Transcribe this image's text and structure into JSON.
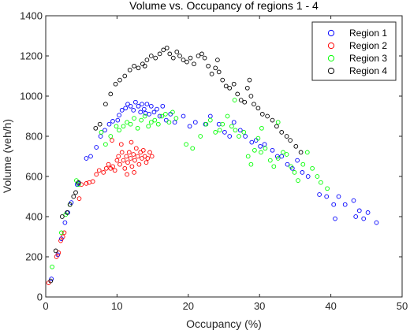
{
  "chart_data": {
    "type": "scatter",
    "title": "Volume vs. Occupancy of regions 1 - 4",
    "xlabel": "Occupancy (%)",
    "ylabel": "Volume (veh/h)",
    "xlim": [
      0,
      50
    ],
    "ylim": [
      0,
      1400
    ],
    "xticks": [
      0,
      10,
      20,
      30,
      40,
      50
    ],
    "yticks": [
      0,
      200,
      400,
      600,
      800,
      1000,
      1200,
      1400
    ],
    "grid": false,
    "legend_position": "top-right",
    "series": [
      {
        "name": "Region 1",
        "color": "#0000ff",
        "points": [
          [
            0.8,
            90
          ],
          [
            1.7,
            210
          ],
          [
            2.2,
            290
          ],
          [
            2.7,
            370
          ],
          [
            3.1,
            420
          ],
          [
            3.6,
            470
          ],
          [
            4.4,
            560
          ],
          [
            4.6,
            565
          ],
          [
            5.7,
            690
          ],
          [
            6.3,
            700
          ],
          [
            7.1,
            745
          ],
          [
            7.7,
            800
          ],
          [
            8.3,
            830
          ],
          [
            8.9,
            860
          ],
          [
            9.4,
            875
          ],
          [
            10.1,
            880
          ],
          [
            10.3,
            905
          ],
          [
            10.7,
            930
          ],
          [
            11.2,
            940
          ],
          [
            11.5,
            960
          ],
          [
            11.9,
            950
          ],
          [
            12.3,
            930
          ],
          [
            12.6,
            970
          ],
          [
            13.0,
            950
          ],
          [
            13.3,
            920
          ],
          [
            13.5,
            960
          ],
          [
            13.8,
            935
          ],
          [
            14.0,
            915
          ],
          [
            14.2,
            960
          ],
          [
            14.5,
            910
          ],
          [
            14.8,
            950
          ],
          [
            15.2,
            920
          ],
          [
            15.6,
            935
          ],
          [
            16.0,
            900
          ],
          [
            16.4,
            950
          ],
          [
            16.9,
            880
          ],
          [
            17.5,
            910
          ],
          [
            18.1,
            870
          ],
          [
            19.3,
            900
          ],
          [
            20.2,
            850
          ],
          [
            21.0,
            870
          ],
          [
            22.4,
            860
          ],
          [
            23.1,
            900
          ],
          [
            24.3,
            860
          ],
          [
            25.1,
            820
          ],
          [
            25.8,
            800
          ],
          [
            26.4,
            870
          ],
          [
            27.3,
            830
          ],
          [
            28.0,
            800
          ],
          [
            28.9,
            770
          ],
          [
            29.5,
            780
          ],
          [
            30.1,
            750
          ],
          [
            30.7,
            760
          ],
          [
            31.8,
            730
          ],
          [
            32.5,
            700
          ],
          [
            33.1,
            700
          ],
          [
            33.9,
            660
          ],
          [
            34.6,
            640
          ],
          [
            35.3,
            680
          ],
          [
            36.0,
            620
          ],
          [
            36.8,
            600
          ],
          [
            38.4,
            510
          ],
          [
            39.4,
            500
          ],
          [
            40.4,
            460
          ],
          [
            41.1,
            500
          ],
          [
            42.0,
            460
          ],
          [
            43.2,
            480
          ],
          [
            44.0,
            430
          ],
          [
            44.6,
            390
          ],
          [
            45.2,
            420
          ],
          [
            46.4,
            370
          ],
          [
            40.6,
            390
          ],
          [
            43.5,
            400
          ]
        ]
      },
      {
        "name": "Region 2",
        "color": "#ff0000",
        "points": [
          [
            0.4,
            70
          ],
          [
            1.5,
            200
          ],
          [
            1.8,
            220
          ],
          [
            2.1,
            280
          ],
          [
            2.4,
            300
          ],
          [
            2.6,
            320
          ],
          [
            4.7,
            490
          ],
          [
            5.0,
            560
          ],
          [
            5.7,
            565
          ],
          [
            6.1,
            570
          ],
          [
            6.6,
            575
          ],
          [
            7.1,
            610
          ],
          [
            7.5,
            630
          ],
          [
            8.1,
            620
          ],
          [
            8.5,
            640
          ],
          [
            8.8,
            660
          ],
          [
            9.1,
            640
          ],
          [
            9.4,
            650
          ],
          [
            9.7,
            630
          ],
          [
            10.0,
            680
          ],
          [
            10.2,
            700
          ],
          [
            10.4,
            660
          ],
          [
            10.7,
            720
          ],
          [
            10.9,
            680
          ],
          [
            11.1,
            640
          ],
          [
            11.3,
            700
          ],
          [
            11.5,
            670
          ],
          [
            11.7,
            720
          ],
          [
            11.9,
            690
          ],
          [
            12.1,
            650
          ],
          [
            12.3,
            710
          ],
          [
            12.5,
            680
          ],
          [
            12.7,
            740
          ],
          [
            12.9,
            700
          ],
          [
            13.1,
            660
          ],
          [
            13.3,
            720
          ],
          [
            13.5,
            690
          ],
          [
            13.7,
            730
          ],
          [
            13.9,
            700
          ],
          [
            14.1,
            670
          ],
          [
            14.3,
            690
          ],
          [
            14.6,
            720
          ],
          [
            14.9,
            700
          ],
          [
            9.3,
            780
          ],
          [
            10.6,
            760
          ],
          [
            12.0,
            770
          ],
          [
            11.4,
            610
          ],
          [
            12.4,
            620
          ]
        ]
      },
      {
        "name": "Region 3",
        "color": "#00ff00",
        "points": [
          [
            0.9,
            150
          ],
          [
            2.2,
            320
          ],
          [
            2.8,
            410
          ],
          [
            3.4,
            460
          ],
          [
            4.3,
            580
          ],
          [
            4.6,
            560
          ],
          [
            7.8,
            820
          ],
          [
            8.4,
            760
          ],
          [
            9.1,
            800
          ],
          [
            9.9,
            850
          ],
          [
            10.3,
            830
          ],
          [
            10.9,
            850
          ],
          [
            11.4,
            870
          ],
          [
            11.9,
            860
          ],
          [
            12.4,
            890
          ],
          [
            12.9,
            840
          ],
          [
            13.4,
            880
          ],
          [
            13.9,
            900
          ],
          [
            14.4,
            850
          ],
          [
            14.8,
            870
          ],
          [
            15.3,
            880
          ],
          [
            15.8,
            860
          ],
          [
            16.3,
            900
          ],
          [
            16.8,
            910
          ],
          [
            17.3,
            870
          ],
          [
            17.8,
            920
          ],
          [
            18.3,
            890
          ],
          [
            19.7,
            760
          ],
          [
            20.6,
            740
          ],
          [
            21.7,
            800
          ],
          [
            22.5,
            860
          ],
          [
            23.1,
            880
          ],
          [
            23.8,
            820
          ],
          [
            24.4,
            830
          ],
          [
            24.8,
            860
          ],
          [
            25.5,
            900
          ],
          [
            26.1,
            850
          ],
          [
            26.6,
            830
          ],
          [
            27.1,
            800
          ],
          [
            27.8,
            820
          ],
          [
            28.4,
            700
          ],
          [
            28.8,
            660
          ],
          [
            29.3,
            730
          ],
          [
            29.8,
            790
          ],
          [
            30.2,
            720
          ],
          [
            30.8,
            740
          ],
          [
            31.5,
            680
          ],
          [
            32.0,
            650
          ],
          [
            32.6,
            690
          ],
          [
            33.3,
            720
          ],
          [
            33.8,
            710
          ],
          [
            34.4,
            650
          ],
          [
            34.9,
            620
          ],
          [
            35.4,
            580
          ],
          [
            36.1,
            660
          ],
          [
            36.7,
            720
          ],
          [
            37.4,
            640
          ],
          [
            38.1,
            600
          ],
          [
            38.6,
            570
          ],
          [
            39.5,
            540
          ],
          [
            26.5,
            980
          ],
          [
            30.3,
            840
          ],
          [
            32.6,
            870
          ]
        ]
      },
      {
        "name": "Region 4",
        "color": "#000000",
        "points": [
          [
            0.7,
            80
          ],
          [
            1.4,
            230
          ],
          [
            2.3,
            400
          ],
          [
            3.0,
            420
          ],
          [
            3.4,
            460
          ],
          [
            3.9,
            500
          ],
          [
            4.2,
            520
          ],
          [
            4.6,
            570
          ],
          [
            7.0,
            840
          ],
          [
            7.6,
            860
          ],
          [
            8.4,
            960
          ],
          [
            9.1,
            1010
          ],
          [
            9.8,
            1060
          ],
          [
            10.4,
            1080
          ],
          [
            11.1,
            1100
          ],
          [
            11.8,
            1130
          ],
          [
            12.4,
            1150
          ],
          [
            13.0,
            1140
          ],
          [
            13.6,
            1160
          ],
          [
            14.2,
            1180
          ],
          [
            14.8,
            1200
          ],
          [
            15.4,
            1190
          ],
          [
            16.0,
            1210
          ],
          [
            16.5,
            1230
          ],
          [
            17.0,
            1240
          ],
          [
            17.4,
            1210
          ],
          [
            17.9,
            1190
          ],
          [
            18.4,
            1220
          ],
          [
            18.8,
            1200
          ],
          [
            19.3,
            1180
          ],
          [
            19.8,
            1170
          ],
          [
            20.3,
            1190
          ],
          [
            20.8,
            1160
          ],
          [
            21.4,
            1200
          ],
          [
            21.9,
            1210
          ],
          [
            22.3,
            1190
          ],
          [
            22.8,
            1150
          ],
          [
            23.3,
            1110
          ],
          [
            23.8,
            1140
          ],
          [
            24.3,
            1120
          ],
          [
            24.8,
            1080
          ],
          [
            25.3,
            1050
          ],
          [
            25.8,
            1040
          ],
          [
            26.4,
            1060
          ],
          [
            26.9,
            1010
          ],
          [
            27.4,
            980
          ],
          [
            27.9,
            970
          ],
          [
            28.3,
            1040
          ],
          [
            28.8,
            1000
          ],
          [
            29.2,
            960
          ],
          [
            29.8,
            940
          ],
          [
            30.4,
            910
          ],
          [
            31.1,
            900
          ],
          [
            31.8,
            880
          ],
          [
            32.4,
            850
          ],
          [
            33.1,
            820
          ],
          [
            33.8,
            800
          ],
          [
            34.3,
            780
          ],
          [
            35.1,
            750
          ],
          [
            35.8,
            720
          ],
          [
            13.9,
            1150
          ],
          [
            24.1,
            1180
          ],
          [
            28.6,
            1080
          ]
        ]
      }
    ]
  }
}
